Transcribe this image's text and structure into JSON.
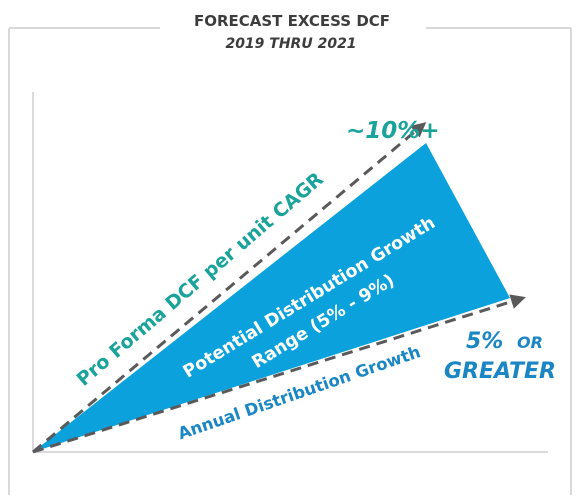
{
  "header": {
    "title": "FORECAST EXCESS DCF",
    "subtitle": "2019 THRU 2021"
  },
  "labels": {
    "upper_line": "Pro Forma DCF per unit CAGR",
    "upper_value": "~10%+",
    "wedge_line1": "Potential Distribution Growth",
    "wedge_line2": "Range (5% - 9%)",
    "lower_line": "Annual Distribution Growth",
    "lower_value_line1_a": "5%",
    "lower_value_line1_b": "OR",
    "lower_value_line2": "GREATER"
  },
  "colors": {
    "wedge": "#0aa1dc",
    "upper_text": "#1aa39a",
    "lower_text": "#1a86c4",
    "dashed_arrow": "#5a5a5a"
  }
}
